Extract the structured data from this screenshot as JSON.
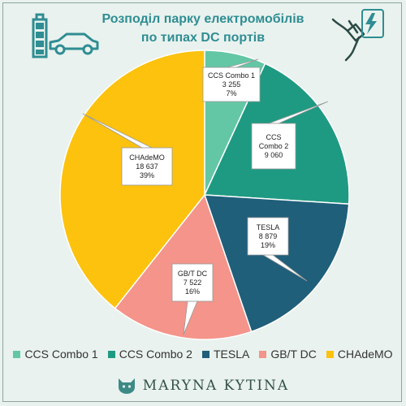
{
  "colors": {
    "background": "#e9f2ee",
    "title": "#2f8d93",
    "icon": "#2f8d93"
  },
  "icons": {
    "left": "battery-car-icon",
    "right": "charging-plug-icon",
    "brand": "cat-logo-icon"
  },
  "brand": {
    "name": "MARYNA KYTINA"
  },
  "chart_data": {
    "type": "pie",
    "title": [
      "Розподіл парку електромобілів",
      "по типах DC портів"
    ],
    "legend_position": "bottom",
    "slices": [
      {
        "name": "CCS Combo 1",
        "label_lines": [
          "CCS Combo 1"
        ],
        "value_text": "3 255",
        "value": 3255,
        "percent_text": "7%",
        "color": "#63c7a5"
      },
      {
        "name": "CCS Combo 2",
        "label_lines": [
          "CCS",
          "Combo 2"
        ],
        "value_text": "9 060",
        "value": 9060,
        "percent_text": "",
        "color": "#1f9a82"
      },
      {
        "name": "TESLA",
        "label_lines": [
          "TESLA"
        ],
        "value_text": "8 879",
        "value": 8879,
        "percent_text": "19%",
        "color": "#1f5f7a"
      },
      {
        "name": "GB/T DC",
        "label_lines": [
          "GB/T DC"
        ],
        "value_text": "7 522",
        "value": 7522,
        "percent_text": "16%",
        "color": "#f4948a"
      },
      {
        "name": "CHAdeMO",
        "label_lines": [
          "CHAdeMO"
        ],
        "value_text": "18 637",
        "value": 18637,
        "percent_text": "39%",
        "color": "#fcc20e"
      }
    ]
  }
}
